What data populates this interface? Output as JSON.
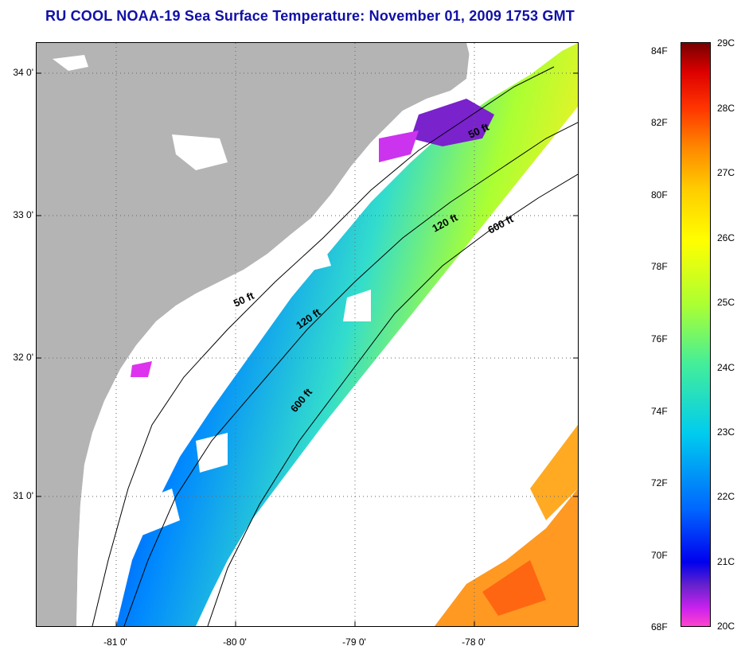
{
  "title": "RU COOL  NOAA-19  Sea Surface Temperature:  November 01, 2009 1753 GMT",
  "lat_labels": [
    "34 0'",
    "33 0'",
    "32 0'",
    "31 0'"
  ],
  "lon_labels": [
    "-81 0'",
    "-80 0'",
    "-79 0'",
    "-78 0'"
  ],
  "isobath_labels": [
    "50 ft",
    "120 ft",
    "600 ft",
    "50 ft",
    "120 ft",
    "600 ft"
  ],
  "colorbar": {
    "fahrenheit": [
      "84F",
      "82F",
      "80F",
      "78F",
      "76F",
      "74F",
      "72F",
      "70F",
      "68F"
    ],
    "celsius": [
      "29C",
      "28C",
      "27C",
      "26C",
      "25C",
      "24C",
      "23C",
      "22C",
      "21C",
      "20C"
    ],
    "colors": [
      "#ff44cc",
      "#cc22ee",
      "#6622cc",
      "#0000ee",
      "#0066ff",
      "#00ccee",
      "#44ee99",
      "#aaff33",
      "#ffff00",
      "#ffcc00",
      "#ff8800",
      "#ff3300",
      "#dd0000",
      "#770000"
    ]
  },
  "colors": {
    "land": "#b4b4b4",
    "title": "#1010a8"
  }
}
